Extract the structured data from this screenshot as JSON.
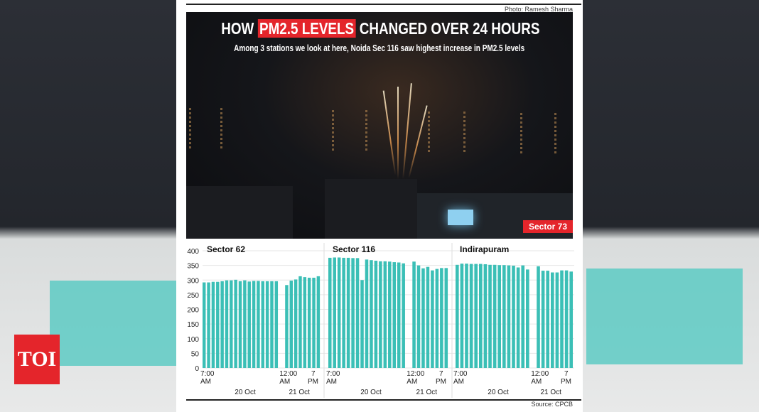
{
  "photo_credit": "Photo: Ramesh Sharma",
  "title_pre": "HOW ",
  "title_highlight": "PM2.5 LEVELS",
  "title_post": " CHANGED OVER 24 HOURS",
  "subtitle": "Among 3 stations we look at here, Noida Sec 116 saw highest increase in PM2.5 levels",
  "photo_label": "Sector 73",
  "source": "Source: CPCB",
  "logo": "TOI",
  "colors": {
    "bar": "#3bbfb6",
    "accent": "#e4252b"
  },
  "chart_data": [
    {
      "type": "bar",
      "title": "Sector 62",
      "ylim": [
        0,
        400
      ],
      "yticks": [
        0,
        50,
        100,
        150,
        200,
        250,
        300,
        350,
        400
      ],
      "xticks": [
        "7:00 AM",
        "12:00 AM",
        "7 PM"
      ],
      "dates": [
        "20 Oct",
        "21 Oct"
      ],
      "groups": [
        [
          292,
          292,
          294,
          294,
          296,
          299,
          299,
          301,
          296,
          299,
          295,
          297,
          297,
          296,
          296,
          296,
          296
        ],
        [
          283,
          298,
          302,
          313,
          310,
          308,
          308,
          313
        ]
      ]
    },
    {
      "type": "bar",
      "title": "Sector 116",
      "ylim": [
        0,
        400
      ],
      "xticks": [
        "7:00 AM",
        "12:00 AM",
        "7 PM"
      ],
      "dates": [
        "20 Oct",
        "21 Oct"
      ],
      "groups": [
        [
          376,
          377,
          377,
          376,
          376,
          375,
          375,
          300,
          370,
          368,
          366,
          364,
          364,
          363,
          361,
          360,
          357
        ],
        [
          363,
          350,
          340,
          345,
          333,
          338,
          341,
          341
        ]
      ]
    },
    {
      "type": "bar",
      "title": "Indirapuram",
      "ylim": [
        0,
        400
      ],
      "xticks": [
        "7:00 AM",
        "12:00 AM",
        "7 PM"
      ],
      "dates": [
        "20 Oct",
        "21 Oct"
      ],
      "groups": [
        [
          352,
          356,
          356,
          355,
          355,
          355,
          354,
          352,
          352,
          351,
          351,
          350,
          349,
          343,
          350,
          336
        ],
        [
          347,
          332,
          332,
          326,
          326,
          333,
          333,
          329
        ]
      ]
    }
  ]
}
